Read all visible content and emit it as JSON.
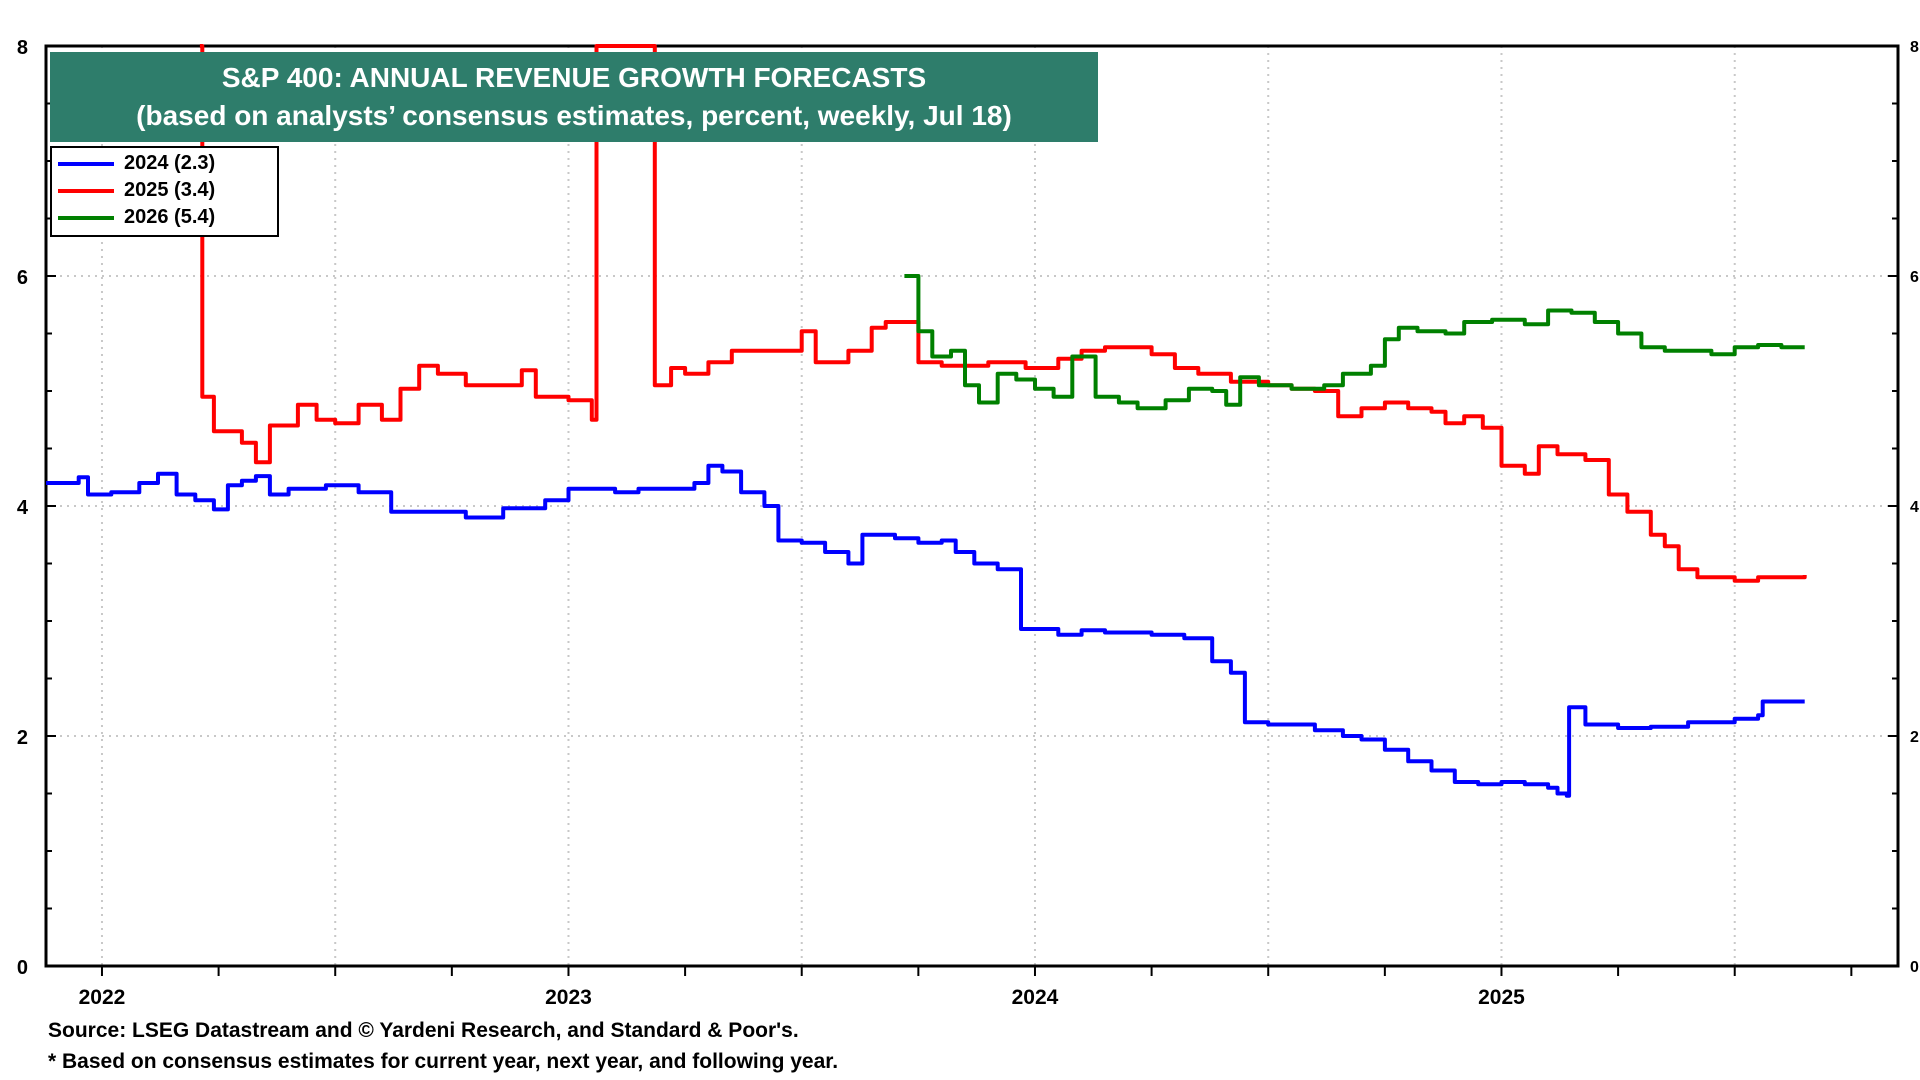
{
  "title": {
    "line1": "S&P 400: ANNUAL REVENUE GROWTH FORECASTS",
    "line2": "(based on analysts’ consensus estimates, percent, weekly, Jul 18)"
  },
  "legend": [
    {
      "label": "2024 (2.3)",
      "color": "#0000ff"
    },
    {
      "label": "2025 (3.4)",
      "color": "#ff0000"
    },
    {
      "label": "2026 (5.4)",
      "color": "#008000"
    }
  ],
  "footnotes": {
    "source": "Source: LSEG Datastream and © Yardeni Research, and Standard & Poor's.",
    "note": "* Based on consensus estimates for current year, next year, and following year."
  },
  "colors": {
    "title_bg": "#2e7d6b",
    "axis": "#000000",
    "grid": "#c8c8c8"
  },
  "chart_data": {
    "type": "line",
    "title": "S&P 400: ANNUAL REVENUE GROWTH FORECASTS",
    "subtitle": "(based on analysts’ consensus estimates, percent, weekly, Jul 18)",
    "x_ticks": [
      "2022",
      "2023",
      "2024",
      "2025"
    ],
    "xlim": [
      2021.88,
      2025.85
    ],
    "ylim": [
      0,
      8
    ],
    "y_ticks": [
      0,
      2,
      4,
      6,
      8
    ],
    "grid": true,
    "legend_position": "top-left",
    "series": [
      {
        "name": "2024 (2.3)",
        "color": "#0000ff",
        "points": [
          [
            2021.88,
            4.2
          ],
          [
            2021.95,
            4.25
          ],
          [
            2021.97,
            4.1
          ],
          [
            2022.02,
            4.12
          ],
          [
            2022.08,
            4.2
          ],
          [
            2022.12,
            4.28
          ],
          [
            2022.16,
            4.1
          ],
          [
            2022.2,
            4.05
          ],
          [
            2022.24,
            3.97
          ],
          [
            2022.27,
            4.18
          ],
          [
            2022.3,
            4.22
          ],
          [
            2022.33,
            4.26
          ],
          [
            2022.36,
            4.1
          ],
          [
            2022.4,
            4.15
          ],
          [
            2022.48,
            4.18
          ],
          [
            2022.55,
            4.12
          ],
          [
            2022.62,
            3.95
          ],
          [
            2022.7,
            3.95
          ],
          [
            2022.78,
            3.9
          ],
          [
            2022.86,
            3.98
          ],
          [
            2022.95,
            4.05
          ],
          [
            2023.0,
            4.15
          ],
          [
            2023.1,
            4.12
          ],
          [
            2023.15,
            4.15
          ],
          [
            2023.22,
            4.15
          ],
          [
            2023.27,
            4.2
          ],
          [
            2023.3,
            4.35
          ],
          [
            2023.33,
            4.3
          ],
          [
            2023.37,
            4.12
          ],
          [
            2023.42,
            4.0
          ],
          [
            2023.45,
            3.7
          ],
          [
            2023.5,
            3.68
          ],
          [
            2023.55,
            3.6
          ],
          [
            2023.6,
            3.5
          ],
          [
            2023.63,
            3.75
          ],
          [
            2023.7,
            3.72
          ],
          [
            2023.75,
            3.68
          ],
          [
            2023.8,
            3.7
          ],
          [
            2023.83,
            3.6
          ],
          [
            2023.87,
            3.5
          ],
          [
            2023.92,
            3.45
          ],
          [
            2023.97,
            2.93
          ],
          [
            2024.05,
            2.88
          ],
          [
            2024.1,
            2.92
          ],
          [
            2024.15,
            2.9
          ],
          [
            2024.25,
            2.88
          ],
          [
            2024.32,
            2.85
          ],
          [
            2024.38,
            2.65
          ],
          [
            2024.42,
            2.55
          ],
          [
            2024.45,
            2.12
          ],
          [
            2024.5,
            2.1
          ],
          [
            2024.55,
            2.1
          ],
          [
            2024.6,
            2.05
          ],
          [
            2024.66,
            2.0
          ],
          [
            2024.7,
            1.97
          ],
          [
            2024.75,
            1.88
          ],
          [
            2024.8,
            1.78
          ],
          [
            2024.85,
            1.7
          ],
          [
            2024.9,
            1.6
          ],
          [
            2024.95,
            1.58
          ],
          [
            2025.0,
            1.6
          ],
          [
            2025.05,
            1.58
          ],
          [
            2025.1,
            1.55
          ],
          [
            2025.12,
            1.5
          ],
          [
            2025.14,
            1.48
          ],
          [
            2025.145,
            2.25
          ],
          [
            2025.18,
            2.1
          ],
          [
            2025.25,
            2.07
          ],
          [
            2025.32,
            2.08
          ],
          [
            2025.4,
            2.12
          ],
          [
            2025.5,
            2.15
          ],
          [
            2025.55,
            2.18
          ],
          [
            2025.56,
            2.3
          ],
          [
            2025.65,
            2.3
          ]
        ]
      },
      {
        "name": "2025 (3.4)",
        "color": "#ff0000",
        "points": [
          [
            2022.21,
            8.0
          ],
          [
            2022.215,
            4.95
          ],
          [
            2022.24,
            4.65
          ],
          [
            2022.3,
            4.55
          ],
          [
            2022.33,
            4.38
          ],
          [
            2022.36,
            4.7
          ],
          [
            2022.42,
            4.88
          ],
          [
            2022.46,
            4.75
          ],
          [
            2022.5,
            4.72
          ],
          [
            2022.55,
            4.88
          ],
          [
            2022.6,
            4.75
          ],
          [
            2022.64,
            5.02
          ],
          [
            2022.68,
            5.22
          ],
          [
            2022.72,
            5.15
          ],
          [
            2022.78,
            5.05
          ],
          [
            2022.85,
            5.05
          ],
          [
            2022.9,
            5.18
          ],
          [
            2022.93,
            4.95
          ],
          [
            2023.0,
            4.92
          ],
          [
            2023.05,
            4.75
          ],
          [
            2023.06,
            8.0
          ],
          [
            2023.18,
            8.0
          ],
          [
            2023.185,
            5.05
          ],
          [
            2023.22,
            5.2
          ],
          [
            2023.25,
            5.15
          ],
          [
            2023.3,
            5.25
          ],
          [
            2023.35,
            5.35
          ],
          [
            2023.45,
            5.35
          ],
          [
            2023.5,
            5.52
          ],
          [
            2023.53,
            5.25
          ],
          [
            2023.6,
            5.35
          ],
          [
            2023.65,
            5.55
          ],
          [
            2023.68,
            5.6
          ],
          [
            2023.72,
            5.6
          ],
          [
            2023.75,
            5.25
          ],
          [
            2023.8,
            5.22
          ],
          [
            2023.9,
            5.25
          ],
          [
            2023.98,
            5.2
          ],
          [
            2024.05,
            5.28
          ],
          [
            2024.1,
            5.35
          ],
          [
            2024.15,
            5.38
          ],
          [
            2024.2,
            5.38
          ],
          [
            2024.25,
            5.32
          ],
          [
            2024.3,
            5.2
          ],
          [
            2024.35,
            5.15
          ],
          [
            2024.42,
            5.08
          ],
          [
            2024.5,
            5.05
          ],
          [
            2024.55,
            5.02
          ],
          [
            2024.6,
            5.0
          ],
          [
            2024.65,
            4.78
          ],
          [
            2024.7,
            4.85
          ],
          [
            2024.75,
            4.9
          ],
          [
            2024.8,
            4.85
          ],
          [
            2024.85,
            4.82
          ],
          [
            2024.88,
            4.72
          ],
          [
            2024.92,
            4.78
          ],
          [
            2024.96,
            4.68
          ],
          [
            2025.0,
            4.35
          ],
          [
            2025.05,
            4.28
          ],
          [
            2025.08,
            4.52
          ],
          [
            2025.12,
            4.45
          ],
          [
            2025.18,
            4.4
          ],
          [
            2025.23,
            4.1
          ],
          [
            2025.27,
            3.95
          ],
          [
            2025.32,
            3.75
          ],
          [
            2025.35,
            3.65
          ],
          [
            2025.38,
            3.45
          ],
          [
            2025.42,
            3.38
          ],
          [
            2025.5,
            3.35
          ],
          [
            2025.55,
            3.38
          ],
          [
            2025.65,
            3.4
          ]
        ]
      },
      {
        "name": "2026 (5.4)",
        "color": "#008000",
        "points": [
          [
            2023.72,
            6.0
          ],
          [
            2023.75,
            5.52
          ],
          [
            2023.78,
            5.3
          ],
          [
            2023.82,
            5.35
          ],
          [
            2023.85,
            5.05
          ],
          [
            2023.88,
            4.9
          ],
          [
            2023.92,
            5.15
          ],
          [
            2023.96,
            5.1
          ],
          [
            2024.0,
            5.02
          ],
          [
            2024.04,
            4.95
          ],
          [
            2024.08,
            5.3
          ],
          [
            2024.13,
            4.95
          ],
          [
            2024.18,
            4.9
          ],
          [
            2024.22,
            4.85
          ],
          [
            2024.28,
            4.92
          ],
          [
            2024.33,
            5.02
          ],
          [
            2024.38,
            5.0
          ],
          [
            2024.41,
            4.88
          ],
          [
            2024.44,
            5.12
          ],
          [
            2024.48,
            5.05
          ],
          [
            2024.55,
            5.02
          ],
          [
            2024.62,
            5.05
          ],
          [
            2024.66,
            5.15
          ],
          [
            2024.72,
            5.22
          ],
          [
            2024.75,
            5.45
          ],
          [
            2024.78,
            5.55
          ],
          [
            2024.82,
            5.52
          ],
          [
            2024.88,
            5.5
          ],
          [
            2024.92,
            5.6
          ],
          [
            2024.98,
            5.62
          ],
          [
            2025.05,
            5.58
          ],
          [
            2025.1,
            5.7
          ],
          [
            2025.15,
            5.68
          ],
          [
            2025.2,
            5.6
          ],
          [
            2025.25,
            5.5
          ],
          [
            2025.3,
            5.38
          ],
          [
            2025.35,
            5.35
          ],
          [
            2025.4,
            5.35
          ],
          [
            2025.45,
            5.32
          ],
          [
            2025.5,
            5.38
          ],
          [
            2025.55,
            5.4
          ],
          [
            2025.6,
            5.38
          ],
          [
            2025.65,
            5.38
          ]
        ]
      }
    ]
  }
}
